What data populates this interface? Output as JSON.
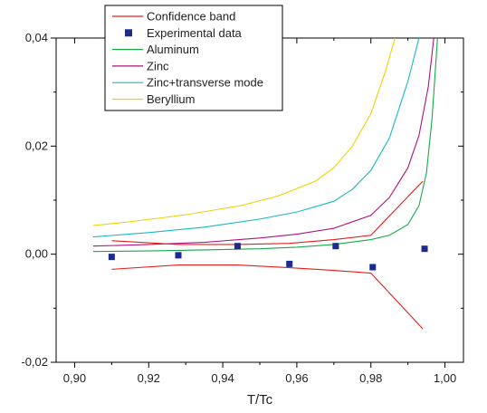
{
  "chart_data": {
    "type": "line",
    "xlabel": "T/Tc",
    "ylabel": "",
    "xlim": [
      0.895,
      1.005
    ],
    "ylim": [
      -0.02,
      0.04
    ],
    "xticks": [
      0.9,
      0.92,
      0.94,
      0.96,
      0.98,
      1.0
    ],
    "xtick_labels": [
      "0,90",
      "0,92",
      "0,94",
      "0,96",
      "0,98",
      "1,00"
    ],
    "yticks": [
      -0.02,
      0.0,
      0.02,
      0.04
    ],
    "ytick_labels": [
      "-0,02",
      "0,00",
      "0,02",
      "0,04"
    ],
    "legend_position": "top-left",
    "grid": false,
    "series": [
      {
        "name": "Confidence band",
        "kind": "line",
        "color": "#e0201c",
        "segments": [
          {
            "x": [
              0.91,
              0.928,
              0.944,
              0.958,
              0.97,
              0.98,
              0.994
            ],
            "y": [
              0.0025,
              0.0018,
              0.0018,
              0.002,
              0.0027,
              0.0035,
              0.0135
            ]
          },
          {
            "x": [
              0.91,
              0.928,
              0.944,
              0.958,
              0.97,
              0.98,
              0.994
            ],
            "y": [
              -0.0028,
              -0.002,
              -0.002,
              -0.0025,
              -0.003,
              -0.0035,
              -0.0138
            ]
          }
        ]
      },
      {
        "name": "Experimental data",
        "kind": "scatter",
        "color": "#1c2a8c",
        "x": [
          0.91,
          0.928,
          0.944,
          0.958,
          0.9705,
          0.9805,
          0.9945
        ],
        "y": [
          -0.0005,
          -0.0002,
          0.0015,
          -0.0018,
          0.0015,
          -0.0024,
          0.001
        ]
      },
      {
        "name": "Aluminum",
        "kind": "line",
        "color": "#18a84a",
        "x": [
          0.905,
          0.92,
          0.935,
          0.95,
          0.96,
          0.97,
          0.98,
          0.985,
          0.99,
          0.993,
          0.995,
          0.9965,
          0.998
        ],
        "y": [
          0.0005,
          0.0006,
          0.0008,
          0.001,
          0.0013,
          0.0018,
          0.0027,
          0.0035,
          0.0055,
          0.009,
          0.015,
          0.025,
          0.04
        ]
      },
      {
        "name": "Zinc",
        "kind": "line",
        "color": "#b0127e",
        "x": [
          0.905,
          0.92,
          0.935,
          0.95,
          0.96,
          0.97,
          0.98,
          0.985,
          0.99,
          0.993,
          0.9955,
          0.997
        ],
        "y": [
          0.0015,
          0.0018,
          0.0022,
          0.003,
          0.0037,
          0.0048,
          0.0072,
          0.0105,
          0.016,
          0.022,
          0.031,
          0.04
        ]
      },
      {
        "name": "Zinc+transverse mode",
        "kind": "line",
        "color": "#18b8c4",
        "x": [
          0.905,
          0.92,
          0.935,
          0.95,
          0.96,
          0.97,
          0.975,
          0.98,
          0.985,
          0.99,
          0.993,
          0.9945
        ],
        "y": [
          0.0032,
          0.004,
          0.005,
          0.0065,
          0.0078,
          0.0098,
          0.012,
          0.0155,
          0.0215,
          0.032,
          0.04,
          0.047
        ]
      },
      {
        "name": "Beryllium",
        "kind": "line",
        "color": "#f2d000",
        "x": [
          0.905,
          0.915,
          0.93,
          0.945,
          0.955,
          0.965,
          0.97,
          0.975,
          0.98,
          0.984,
          0.9865
        ],
        "y": [
          0.0053,
          0.006,
          0.0073,
          0.009,
          0.0108,
          0.0135,
          0.016,
          0.02,
          0.026,
          0.034,
          0.04
        ]
      }
    ]
  }
}
